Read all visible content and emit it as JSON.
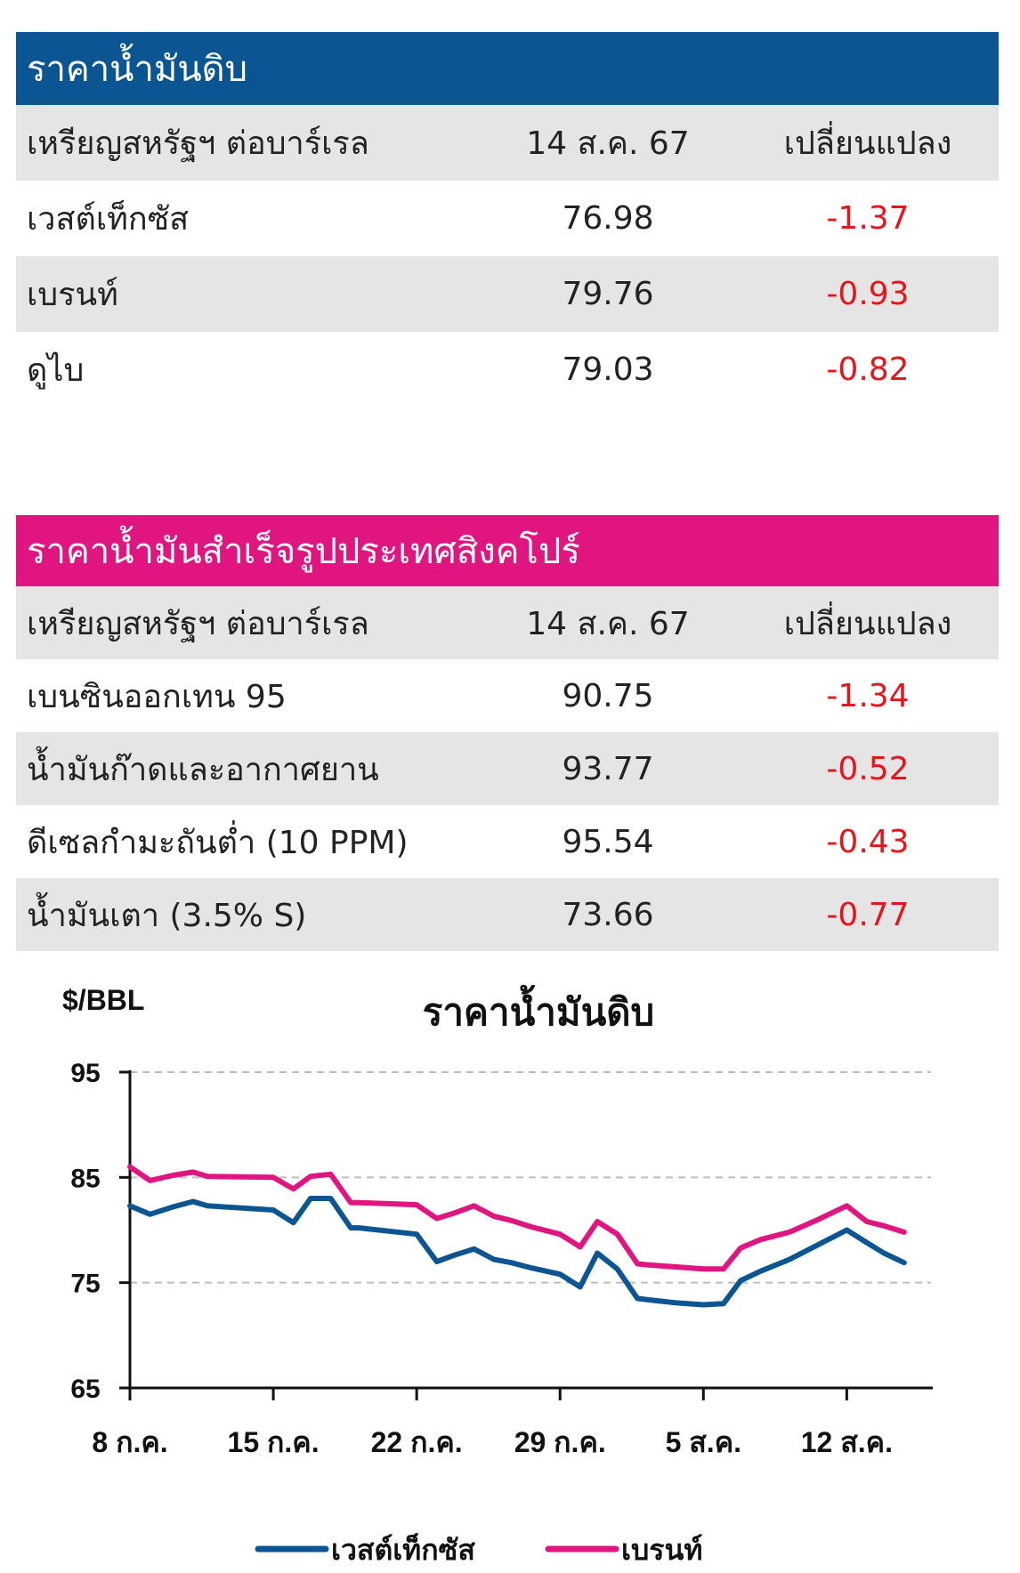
{
  "crude_table": {
    "title": "ราคาน้ำมันดิบ",
    "header": {
      "label": "เหรียญสหรัฐฯ ต่อบาร์เรล",
      "date": "14 ส.ค. 67",
      "change": "เปลี่ยนแปลง"
    },
    "rows": [
      {
        "name": "เวสต์เท็กซัส",
        "price": "76.98",
        "change": "-1.37"
      },
      {
        "name": "เบรนท์",
        "price": "79.76",
        "change": "-0.93"
      },
      {
        "name": "ดูไบ",
        "price": "79.03",
        "change": "-0.82"
      }
    ]
  },
  "refined_table": {
    "title": "ราคาน้ำมันสำเร็จรูปประเทศสิงคโปร์",
    "header": {
      "label": "เหรียญสหรัฐฯ ต่อบาร์เรล",
      "date": "14 ส.ค. 67",
      "change": "เปลี่ยนแปลง"
    },
    "rows": [
      {
        "name": "เบนซินออกเทน 95",
        "price": "90.75",
        "change": "-1.34"
      },
      {
        "name": "น้ำมันก๊าดและอากาศยาน",
        "price": "93.77",
        "change": "-0.52"
      },
      {
        "name": "ดีเซลกำมะถันต่ำ (10 PPM)",
        "price": "95.54",
        "change": "-0.43"
      },
      {
        "name": "น้ำมันเตา (3.5% S)",
        "price": "73.66",
        "change": "-0.77"
      }
    ]
  },
  "colors": {
    "crude_header": "#0a5592",
    "refined_header": "#e0157f",
    "negative": "#e8141b",
    "row_shade": "#e5e5e5"
  },
  "chart_data": {
    "type": "line",
    "title": "ราคาน้ำมันดิบ",
    "ylabel": "$/BBL",
    "ylim": [
      65,
      95
    ],
    "yticks": [
      95,
      85,
      75,
      65
    ],
    "xlim": [
      0,
      28
    ],
    "xticks": [
      {
        "pos": 0,
        "label": "8 ก.ค."
      },
      {
        "pos": 5,
        "label": "15 ก.ค."
      },
      {
        "pos": 10,
        "label": "22 ก.ค."
      },
      {
        "pos": 15,
        "label": "29 ก.ค."
      },
      {
        "pos": 20,
        "label": "5 ส.ค."
      },
      {
        "pos": 25,
        "label": "12 ส.ค."
      }
    ],
    "grid": "horizontal dashed",
    "legend": "bottom",
    "series": [
      {
        "name": "เวสต์เท็กซัส",
        "color": "#0a5592",
        "x": [
          0,
          0.7,
          1.5,
          2.2,
          2.7,
          5,
          5.7,
          6.3,
          7.0,
          7.7,
          8,
          9,
          10,
          10.7,
          11.3,
          12,
          12.7,
          13.3,
          14,
          15,
          15.7,
          16.3,
          17,
          17.7,
          18,
          19,
          20,
          20.7,
          21.3,
          22,
          23,
          24,
          25,
          25.7,
          26.3,
          27
        ],
        "y": [
          82.3,
          81.5,
          82.2,
          82.7,
          82.3,
          81.9,
          80.7,
          83,
          83,
          80.2,
          80.2,
          79.9,
          79.6,
          77,
          77.6,
          78.2,
          77.2,
          76.9,
          76.4,
          75.8,
          74.6,
          77.8,
          76.3,
          73.5,
          73.4,
          73.1,
          72.9,
          73.0,
          75.2,
          76.1,
          77.2,
          78.6,
          80.0,
          78.8,
          77.8,
          76.9
        ]
      },
      {
        "name": "เบรนท์",
        "color": "#e0157f",
        "x": [
          0,
          0.7,
          1.5,
          2.2,
          2.7,
          5,
          5.7,
          6.3,
          7.0,
          7.7,
          8,
          9,
          10,
          10.7,
          11.3,
          12,
          12.7,
          13.3,
          14,
          15,
          15.7,
          16.3,
          17,
          17.7,
          18,
          19,
          20,
          20.7,
          21.3,
          22,
          23,
          24,
          25,
          25.7,
          26.3,
          27
        ],
        "y": [
          86,
          84.7,
          85.2,
          85.5,
          85.1,
          85,
          83.9,
          85.1,
          85.3,
          82.6,
          82.6,
          82.5,
          82.4,
          81.1,
          81.6,
          82.3,
          81.3,
          80.9,
          80.3,
          79.6,
          78.4,
          80.8,
          79.6,
          76.8,
          76.7,
          76.5,
          76.3,
          76.3,
          78.3,
          79.1,
          79.8,
          81,
          82.3,
          80.8,
          80.4,
          79.8
        ]
      }
    ]
  }
}
